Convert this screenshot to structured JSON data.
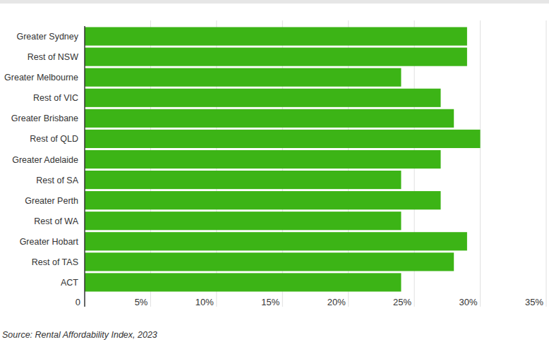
{
  "chart_data": {
    "type": "bar",
    "orientation": "horizontal",
    "categories": [
      "Greater Sydney",
      "Rest of NSW",
      "Greater Melbourne",
      "Rest of VIC",
      "Greater Brisbane",
      "Rest of QLD",
      "Greater Adelaide",
      "Rest of SA",
      "Greater Perth",
      "Rest of WA",
      "Greater Hobart",
      "Rest of TAS",
      "ACT"
    ],
    "values": [
      29,
      29,
      24,
      27,
      28,
      30,
      27,
      24,
      27,
      24,
      29,
      28,
      24
    ],
    "color": "#3cb416",
    "xlim": [
      0,
      35
    ],
    "xticks": [
      0,
      {
        "value": 5,
        "label": "5%"
      },
      {
        "value": 10,
        "label": "10%"
      },
      {
        "value": 15,
        "label": "15%"
      },
      {
        "value": 20,
        "label": "20%"
      },
      {
        "value": 25,
        "label": "25%"
      },
      {
        "value": 30,
        "label": "30%"
      },
      {
        "value": 35,
        "label": "35%"
      }
    ],
    "grid": true,
    "source": "Source: Rental Affordability Index, 2023"
  }
}
